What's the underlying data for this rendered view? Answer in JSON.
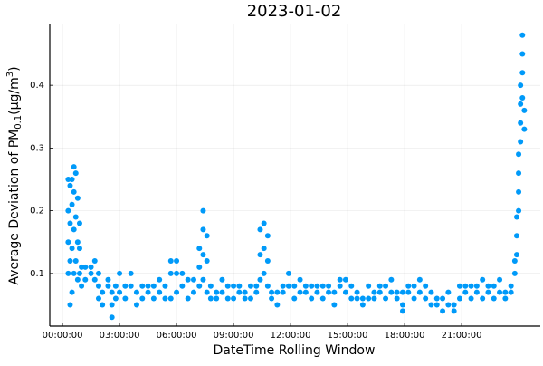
{
  "chart_data": {
    "type": "scatter",
    "title": "2023-01-02",
    "x_label": "DateTime Rolling Window",
    "y_label": [
      "Average Deviation of PM",
      "0.1",
      "(μg/m",
      "3",
      ")"
    ],
    "color": "#009af9",
    "grid": true,
    "xlim": [
      -0.67,
      25.14
    ],
    "ylim": [
      0.016,
      0.497
    ],
    "xticks": [
      {
        "value": 0,
        "label": "00:00:00"
      },
      {
        "value": 3,
        "label": "03:00:00"
      },
      {
        "value": 6,
        "label": "06:00:00"
      },
      {
        "value": 9,
        "label": "09:00:00"
      },
      {
        "value": 12,
        "label": "12:00:00"
      },
      {
        "value": 15,
        "label": "15:00:00"
      },
      {
        "value": 18,
        "label": "18:00:00"
      },
      {
        "value": 21,
        "label": "21:00:00"
      }
    ],
    "yticks": [
      0.1,
      0.2,
      0.3,
      0.4
    ],
    "x": [
      0.3,
      0.3,
      0.3,
      0.3,
      0.4,
      0.4,
      0.4,
      0.4,
      0.5,
      0.5,
      0.5,
      0.5,
      0.6,
      0.6,
      0.6,
      0.6,
      0.7,
      0.7,
      0.7,
      0.8,
      0.8,
      0.8,
      0.9,
      0.9,
      0.9,
      1.0,
      1.0,
      1.2,
      1.2,
      1.5,
      1.5,
      1.7,
      1.7,
      1.9,
      1.9,
      1.9,
      2.1,
      2.1,
      2.4,
      2.4,
      2.6,
      2.6,
      2.6,
      2.8,
      2.8,
      3.0,
      3.0,
      3.3,
      3.3,
      3.6,
      3.6,
      3.9,
      3.9,
      4.2,
      4.2,
      4.5,
      4.5,
      4.8,
      4.8,
      5.1,
      5.1,
      5.4,
      5.4,
      5.7,
      5.7,
      5.7,
      6.0,
      6.0,
      6.0,
      6.3,
      6.3,
      6.6,
      6.6,
      6.9,
      6.9,
      7.2,
      7.2,
      7.2,
      7.4,
      7.4,
      7.4,
      7.4,
      7.6,
      7.6,
      7.6,
      7.8,
      7.8,
      8.1,
      8.1,
      8.4,
      8.4,
      8.7,
      8.7,
      9.0,
      9.0,
      9.3,
      9.3,
      9.6,
      9.6,
      9.9,
      9.9,
      10.2,
      10.2,
      10.4,
      10.4,
      10.4,
      10.6,
      10.6,
      10.6,
      10.8,
      10.8,
      10.8,
      11.0,
      11.0,
      11.3,
      11.3,
      11.6,
      11.6,
      11.9,
      11.9,
      12.2,
      12.2,
      12.5,
      12.5,
      12.8,
      12.8,
      13.1,
      13.1,
      13.4,
      13.4,
      13.7,
      13.7,
      14.0,
      14.0,
      14.3,
      14.3,
      14.6,
      14.6,
      14.9,
      14.9,
      15.2,
      15.2,
      15.5,
      15.5,
      15.8,
      15.8,
      16.1,
      16.1,
      16.4,
      16.4,
      16.7,
      16.7,
      17.0,
      17.0,
      17.3,
      17.3,
      17.6,
      17.6,
      17.9,
      17.9,
      17.9,
      18.2,
      18.2,
      18.5,
      18.5,
      18.8,
      18.8,
      19.1,
      19.1,
      19.4,
      19.4,
      19.7,
      19.7,
      20.0,
      20.0,
      20.3,
      20.3,
      20.6,
      20.6,
      20.9,
      20.9,
      21.2,
      21.2,
      21.5,
      21.5,
      21.8,
      21.8,
      22.1,
      22.1,
      22.4,
      22.4,
      22.7,
      22.7,
      23.0,
      23.0,
      23.3,
      23.3,
      23.6,
      23.6,
      23.8,
      23.8,
      23.9,
      23.9,
      23.9,
      24.0,
      24.0,
      24.0,
      24.0,
      24.1,
      24.1,
      24.1,
      24.1,
      24.2,
      24.2,
      24.2,
      24.2,
      24.3,
      24.3
    ],
    "values": [
      0.1,
      0.15,
      0.2,
      0.25,
      0.05,
      0.12,
      0.18,
      0.24,
      0.07,
      0.14,
      0.21,
      0.25,
      0.1,
      0.17,
      0.23,
      0.27,
      0.12,
      0.19,
      0.26,
      0.09,
      0.15,
      0.22,
      0.1,
      0.14,
      0.18,
      0.08,
      0.11,
      0.09,
      0.11,
      0.1,
      0.11,
      0.09,
      0.12,
      0.06,
      0.08,
      0.1,
      0.05,
      0.07,
      0.08,
      0.09,
      0.03,
      0.05,
      0.07,
      0.06,
      0.08,
      0.07,
      0.1,
      0.06,
      0.08,
      0.08,
      0.1,
      0.05,
      0.07,
      0.06,
      0.08,
      0.07,
      0.08,
      0.06,
      0.08,
      0.07,
      0.09,
      0.06,
      0.08,
      0.06,
      0.1,
      0.12,
      0.07,
      0.1,
      0.12,
      0.08,
      0.1,
      0.06,
      0.09,
      0.07,
      0.09,
      0.08,
      0.11,
      0.14,
      0.09,
      0.13,
      0.17,
      0.2,
      0.07,
      0.12,
      0.16,
      0.06,
      0.08,
      0.06,
      0.07,
      0.07,
      0.09,
      0.06,
      0.08,
      0.06,
      0.08,
      0.07,
      0.08,
      0.06,
      0.07,
      0.06,
      0.08,
      0.07,
      0.08,
      0.09,
      0.13,
      0.17,
      0.1,
      0.14,
      0.18,
      0.08,
      0.12,
      0.16,
      0.06,
      0.07,
      0.05,
      0.07,
      0.07,
      0.08,
      0.08,
      0.1,
      0.06,
      0.08,
      0.07,
      0.09,
      0.07,
      0.08,
      0.06,
      0.08,
      0.07,
      0.08,
      0.06,
      0.08,
      0.07,
      0.08,
      0.05,
      0.07,
      0.08,
      0.09,
      0.07,
      0.09,
      0.06,
      0.08,
      0.06,
      0.07,
      0.05,
      0.06,
      0.06,
      0.08,
      0.06,
      0.07,
      0.07,
      0.08,
      0.06,
      0.08,
      0.07,
      0.09,
      0.06,
      0.07,
      0.04,
      0.05,
      0.07,
      0.07,
      0.08,
      0.06,
      0.08,
      0.07,
      0.09,
      0.06,
      0.08,
      0.05,
      0.07,
      0.05,
      0.06,
      0.04,
      0.06,
      0.05,
      0.07,
      0.04,
      0.05,
      0.06,
      0.08,
      0.07,
      0.08,
      0.06,
      0.08,
      0.07,
      0.08,
      0.06,
      0.09,
      0.07,
      0.08,
      0.06,
      0.08,
      0.07,
      0.09,
      0.06,
      0.07,
      0.07,
      0.08,
      0.1,
      0.12,
      0.13,
      0.16,
      0.19,
      0.2,
      0.23,
      0.26,
      0.29,
      0.31,
      0.34,
      0.37,
      0.4,
      0.38,
      0.42,
      0.45,
      0.48,
      0.33,
      0.36
    ]
  }
}
